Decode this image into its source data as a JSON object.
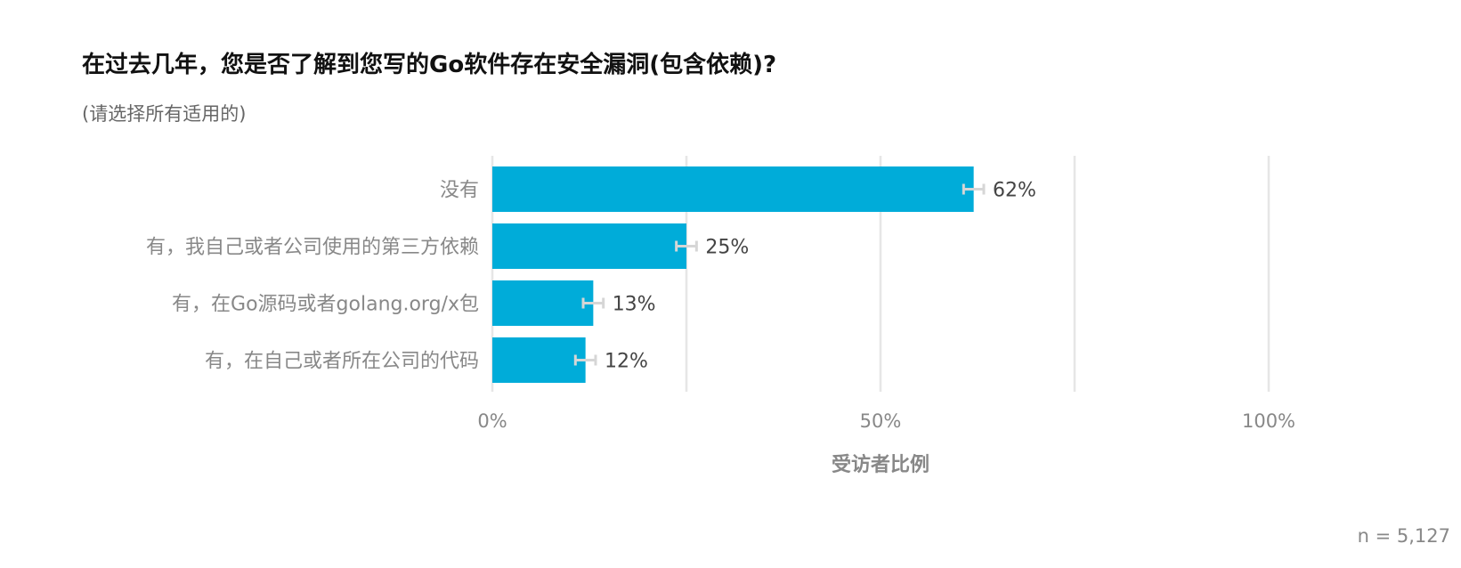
{
  "title": "在过去几年，您是否了解到您写的Go软件存在安全漏洞(包含依赖)?",
  "subtitle": "(请选择所有适用的)",
  "n_label": "n =  5,127",
  "colors": {
    "bar": "#00acd9",
    "grid": "#e6e6e6",
    "error_bar": "#d6d6d6"
  },
  "chart_data": {
    "type": "bar",
    "orientation": "horizontal",
    "categories": [
      "没有",
      "有，我自己或者公司使用的第三方依赖",
      "有，在Go源码或者golang.org/x包",
      "有，在自己或者所在公司的代码"
    ],
    "values": [
      62,
      25,
      13,
      12
    ],
    "value_labels": [
      "62%",
      "25%",
      "13%",
      "12%"
    ],
    "error_margin": 1.3,
    "xlabel": "受访者比例",
    "xlim": [
      0,
      100
    ],
    "xticks": [
      0,
      50,
      100
    ],
    "xtick_labels": [
      "0%",
      "50%",
      "100%"
    ],
    "minor_gridlines": [
      25,
      75
    ],
    "grid": true
  }
}
